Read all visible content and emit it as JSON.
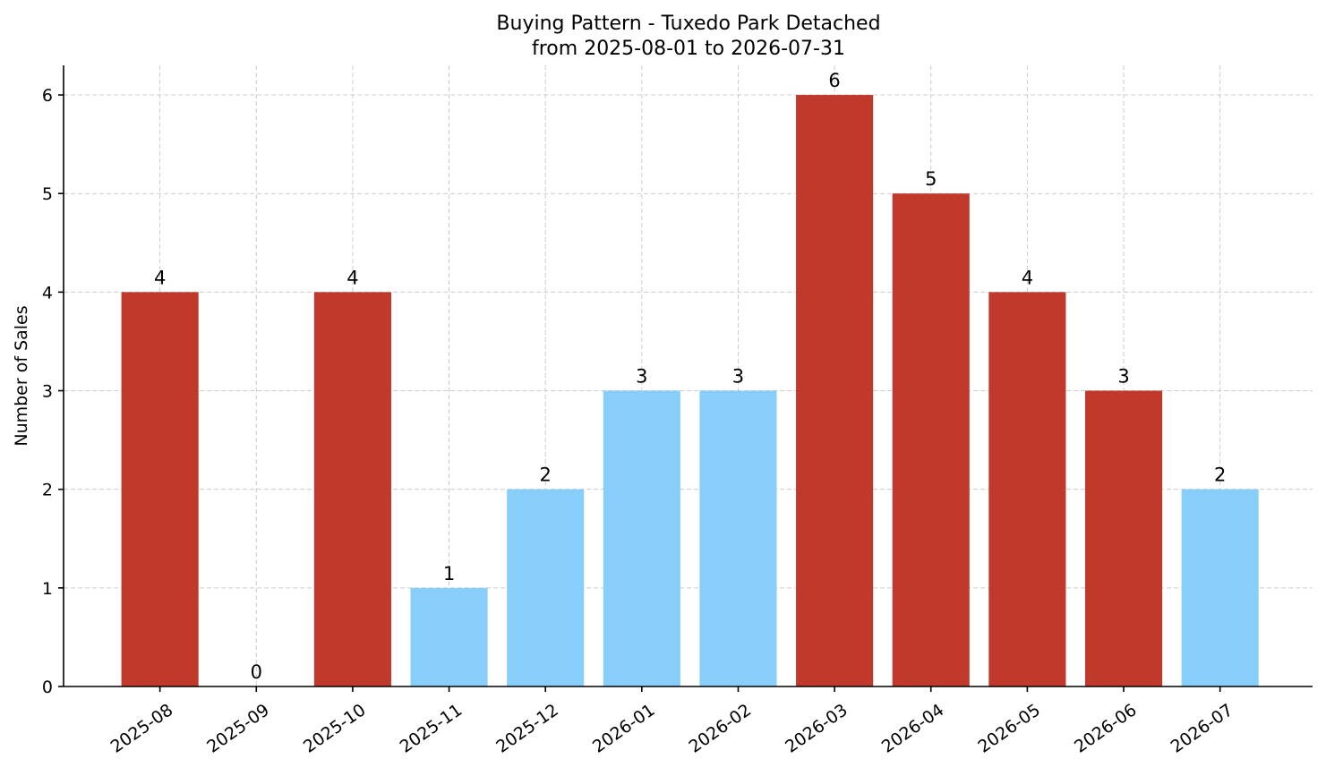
{
  "chart_data": {
    "type": "bar",
    "title": "Buying Pattern - Tuxedo Park Detached",
    "subtitle": "from 2025-08-01 to 2026-07-31",
    "xlabel": "",
    "ylabel": "Number of Sales",
    "categories": [
      "2025-08",
      "2025-09",
      "2025-10",
      "2025-11",
      "2025-12",
      "2026-01",
      "2026-02",
      "2026-03",
      "2026-04",
      "2026-05",
      "2026-06",
      "2026-07"
    ],
    "values": [
      4,
      0,
      4,
      1,
      2,
      3,
      3,
      6,
      5,
      4,
      3,
      2
    ],
    "bar_colors": [
      "#c0392b",
      "#c0392b",
      "#c0392b",
      "#87cefa",
      "#87cefa",
      "#87cefa",
      "#87cefa",
      "#c0392b",
      "#c0392b",
      "#c0392b",
      "#c0392b",
      "#87cefa"
    ],
    "ylim": [
      0,
      6.3
    ],
    "yticks": [
      0,
      1,
      2,
      3,
      4,
      5,
      6
    ],
    "grid": true,
    "data_labels": true,
    "colors": {
      "high": "#c0392b",
      "low": "#87cefa",
      "grid": "#cccccc",
      "axis": "#000000"
    }
  }
}
